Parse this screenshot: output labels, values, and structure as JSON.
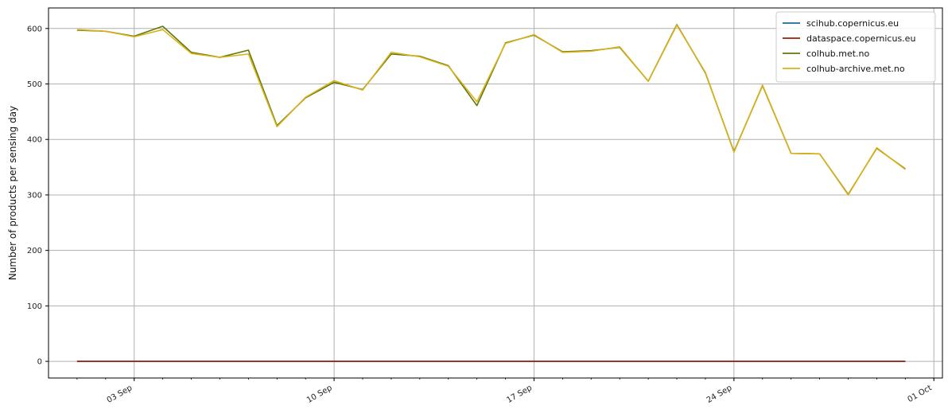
{
  "chart_data": {
    "type": "line",
    "title": "",
    "xlabel": "",
    "ylabel": "Number of products per sensing day",
    "x_dates": [
      "01 Sep",
      "02 Sep",
      "03 Sep",
      "04 Sep",
      "05 Sep",
      "06 Sep",
      "07 Sep",
      "08 Sep",
      "09 Sep",
      "10 Sep",
      "11 Sep",
      "12 Sep",
      "13 Sep",
      "14 Sep",
      "15 Sep",
      "16 Sep",
      "17 Sep",
      "18 Sep",
      "19 Sep",
      "20 Sep",
      "21 Sep",
      "22 Sep",
      "23 Sep",
      "24 Sep",
      "25 Sep",
      "26 Sep",
      "27 Sep",
      "28 Sep",
      "29 Sep",
      "30 Sep"
    ],
    "x_index": [
      1,
      2,
      3,
      4,
      5,
      6,
      7,
      8,
      9,
      10,
      11,
      12,
      13,
      14,
      15,
      16,
      17,
      18,
      19,
      20,
      21,
      22,
      23,
      24,
      25,
      26,
      27,
      28,
      29,
      30
    ],
    "xlim": [
      0.0,
      31.3
    ],
    "xticks": [
      {
        "pos": 3,
        "label": "03 Sep"
      },
      {
        "pos": 10,
        "label": "10 Sep"
      },
      {
        "pos": 17,
        "label": "17 Sep"
      },
      {
        "pos": 24,
        "label": "24 Sep"
      },
      {
        "pos": 31,
        "label": "01 Oct"
      }
    ],
    "ylim": [
      -30,
      637
    ],
    "yticks": [
      0,
      100,
      200,
      300,
      400,
      500,
      600
    ],
    "grid": true,
    "legend_position": "top-right",
    "series": [
      {
        "name": "scihub.copernicus.eu",
        "color": "#1a6c96",
        "values": [
          0,
          0,
          0,
          0,
          0,
          0,
          0,
          0,
          0,
          0,
          0,
          0,
          0,
          0,
          0,
          0,
          0,
          0,
          0,
          0,
          0,
          0,
          0,
          0,
          0,
          0,
          0,
          0,
          0,
          0
        ]
      },
      {
        "name": "dataspace.copernicus.eu",
        "color": "#a11f00",
        "values": [
          0,
          0,
          0,
          0,
          0,
          0,
          0,
          0,
          0,
          0,
          0,
          0,
          0,
          0,
          0,
          0,
          0,
          0,
          0,
          0,
          0,
          0,
          0,
          0,
          0,
          0,
          0,
          0,
          0,
          0
        ]
      },
      {
        "name": "colhub.met.no",
        "color": "#5f7a0a",
        "values": [
          597,
          595,
          586,
          604,
          557,
          548,
          561,
          425,
          475,
          503,
          490,
          554,
          550,
          533,
          461,
          574,
          588,
          558,
          560,
          566,
          505,
          607,
          520,
          378,
          497,
          375,
          374,
          301,
          384,
          347
        ]
      },
      {
        "name": "colhub-archive.met.no",
        "color": "#dcb019",
        "values": [
          598,
          595,
          585,
          598,
          555,
          548,
          554,
          423,
          476,
          506,
          489,
          557,
          549,
          532,
          468,
          573,
          589,
          557,
          559,
          567,
          505,
          606,
          521,
          377,
          498,
          375,
          374,
          300,
          385,
          346
        ]
      }
    ]
  }
}
